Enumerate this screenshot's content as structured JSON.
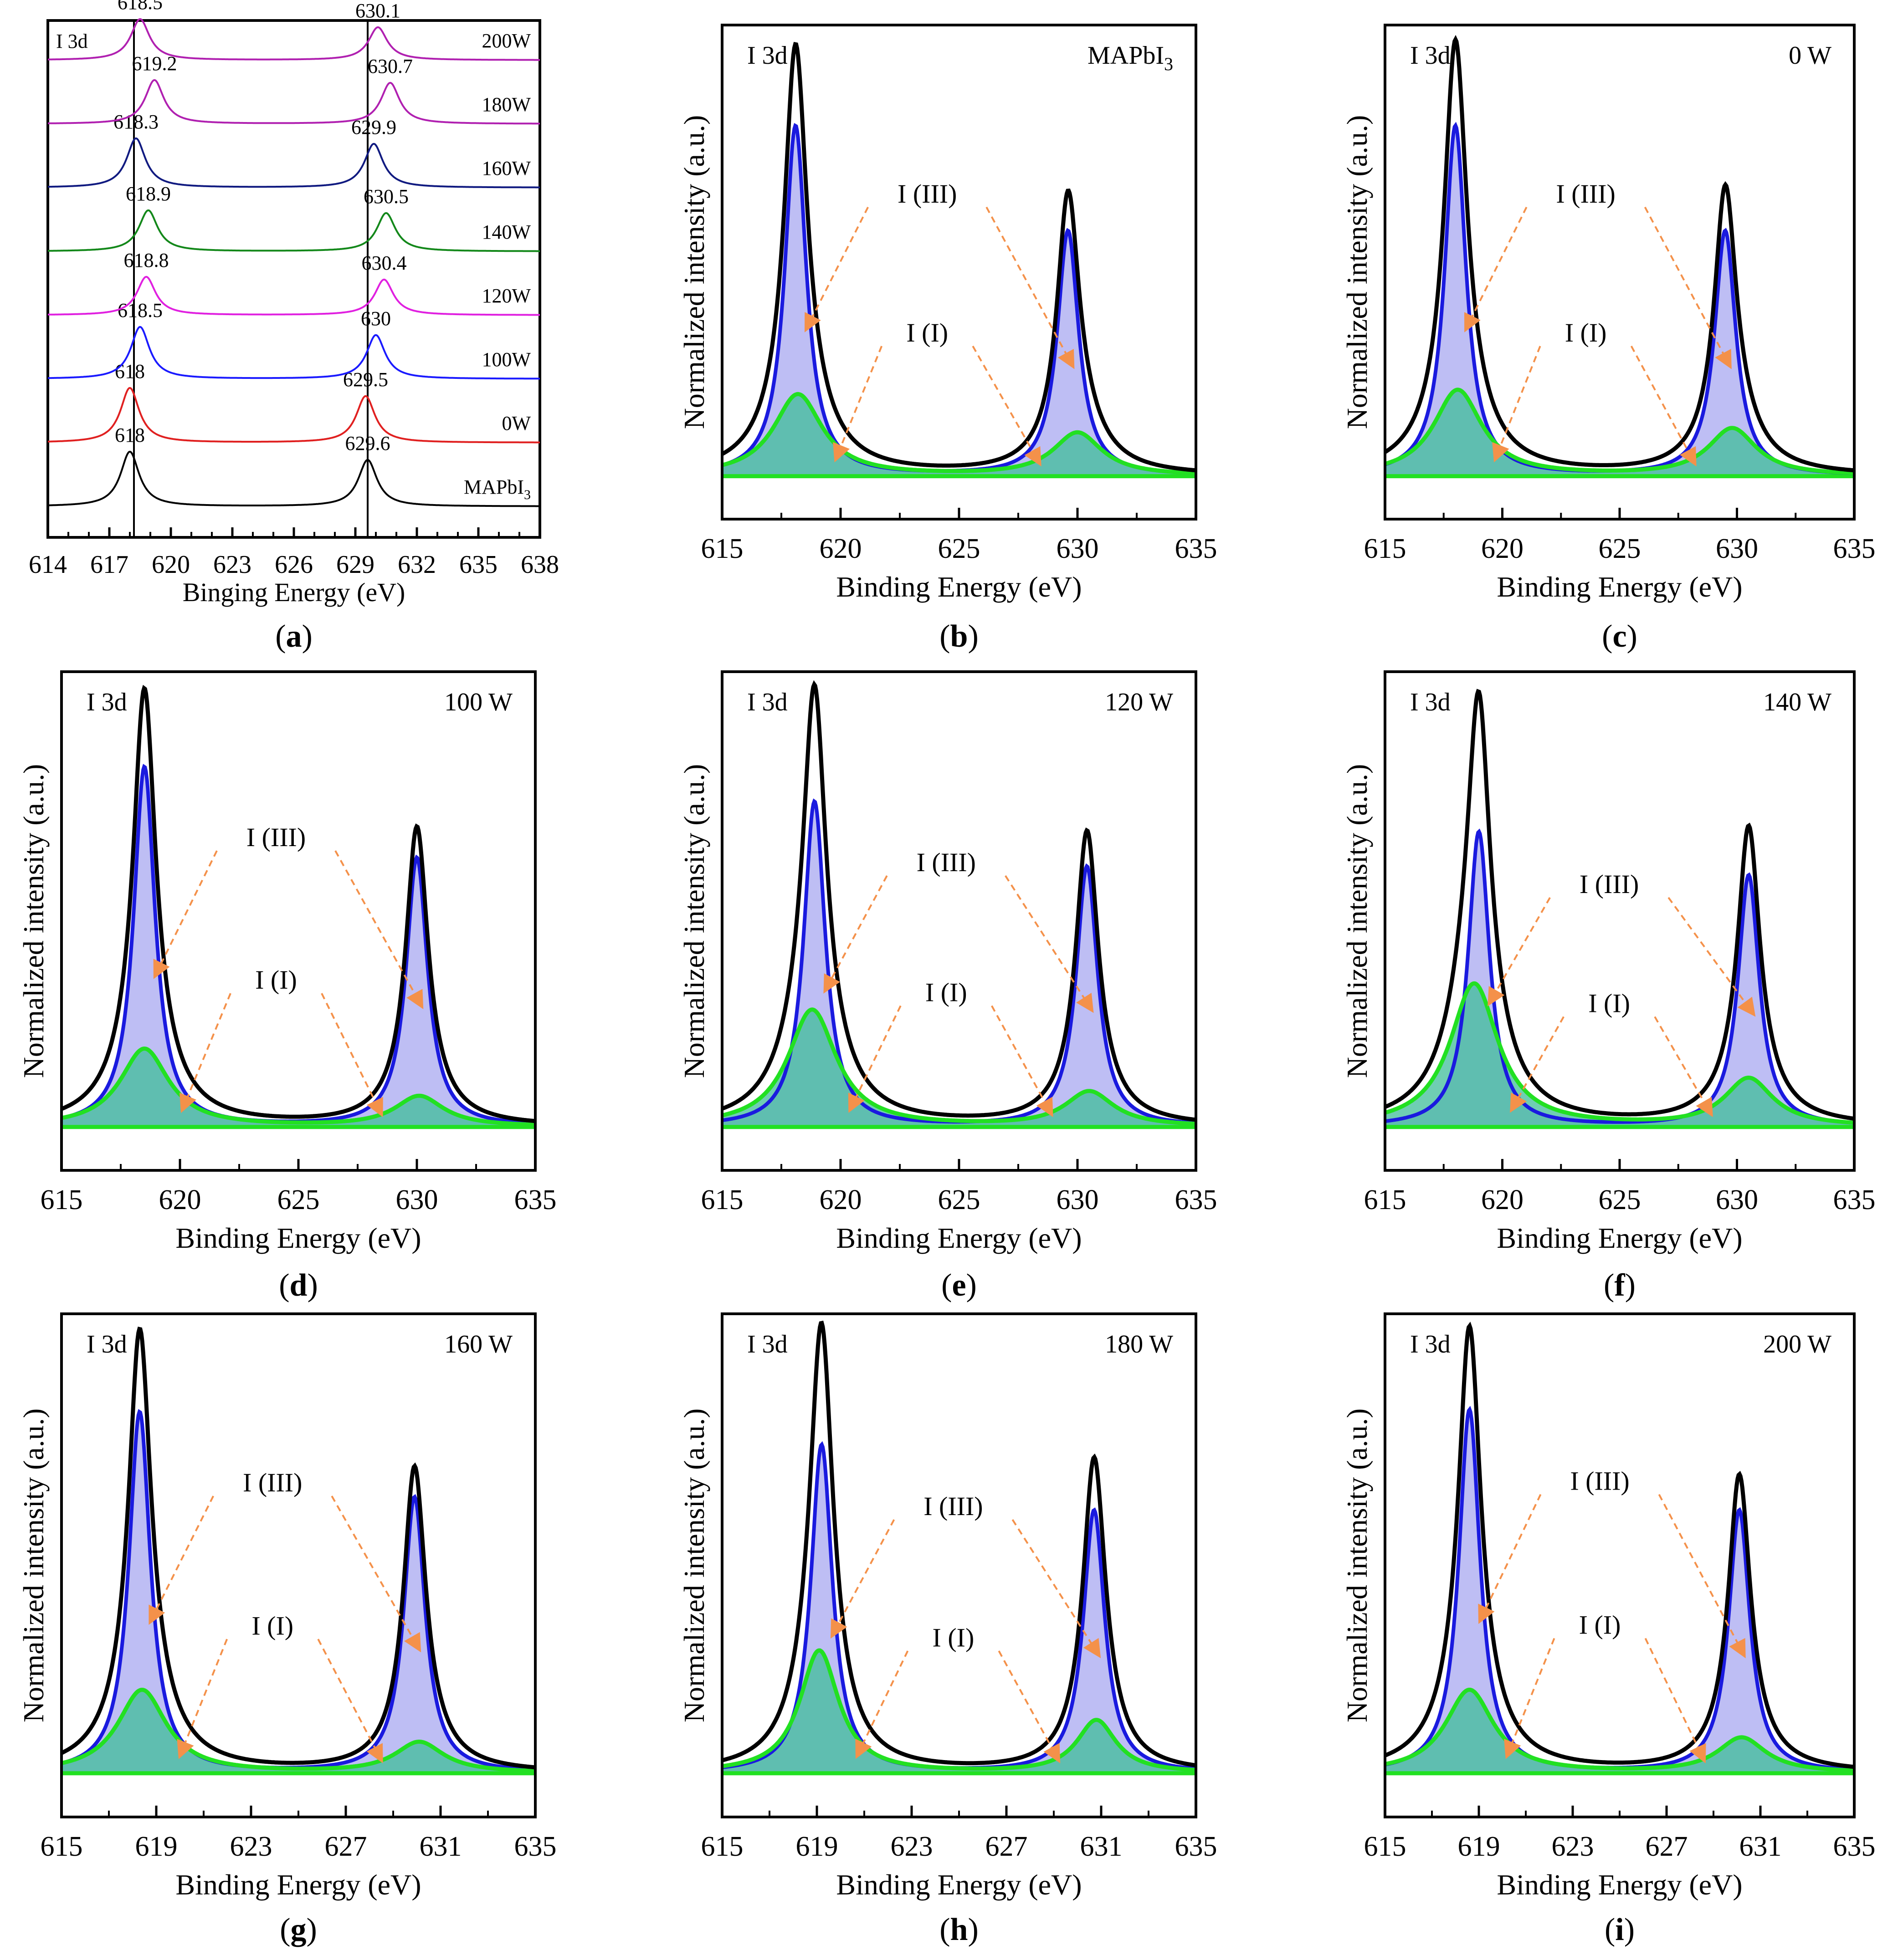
{
  "colors": {
    "black": "#000000",
    "blue": "#1a1adf",
    "green": "#22e022",
    "fill_blue": "#b3b3f2",
    "fill_green": "#3fbe9a",
    "arrow": "#f4914a",
    "series_a": [
      "#000000",
      "#e02020",
      "#1a1aff",
      "#e020e0",
      "#13881a",
      "#101a80",
      "#b020b0",
      "#b020b0"
    ]
  },
  "chart_data": [
    {
      "id": "a",
      "type": "line",
      "caption": "a",
      "title": "I 3d",
      "xlabel": "Binging Energy (eV)",
      "ylabel": "",
      "xlim": [
        614,
        638
      ],
      "xticks": [
        "614",
        "617",
        "620",
        "623",
        "626",
        "629",
        "632",
        "635",
        "638"
      ],
      "vlines": [
        618.2,
        629.6
      ],
      "series": [
        {
          "name": "MAPbI",
          "sub": "3",
          "peaks": [
            "618",
            "629.6"
          ],
          "p1": 618.0,
          "p2": 629.6,
          "h1": 1.0,
          "h2": 0.85
        },
        {
          "name": "0W",
          "peaks": [
            "618",
            "629.5"
          ],
          "p1": 618.0,
          "p2": 629.5,
          "h1": 1.0,
          "h2": 0.85
        },
        {
          "name": "100W",
          "peaks": [
            "618.5",
            "630"
          ],
          "p1": 618.5,
          "p2": 630.0,
          "h1": 0.95,
          "h2": 0.8
        },
        {
          "name": "120W",
          "peaks": [
            "618.8",
            "630.4"
          ],
          "p1": 618.8,
          "p2": 630.4,
          "h1": 0.7,
          "h2": 0.65
        },
        {
          "name": "140W",
          "peaks": [
            "618.9",
            "630.5"
          ],
          "p1": 618.9,
          "p2": 630.5,
          "h1": 0.75,
          "h2": 0.7
        },
        {
          "name": "160W",
          "peaks": [
            "618.3",
            "629.9"
          ],
          "p1": 618.3,
          "p2": 629.9,
          "h1": 0.9,
          "h2": 0.8
        },
        {
          "name": "180W",
          "peaks": [
            "619.2",
            "630.7"
          ],
          "p1": 619.2,
          "p2": 630.7,
          "h1": 0.8,
          "h2": 0.75
        },
        {
          "name": "200W",
          "peaks": [
            "618.5",
            "630.1"
          ],
          "p1": 618.5,
          "p2": 630.1,
          "h1": 0.75,
          "h2": 0.6
        }
      ]
    },
    {
      "id": "b",
      "type": "line",
      "caption": "b",
      "title": "I 3d",
      "label": "MAPbI",
      "label_sub": "3",
      "xlabel": "Binding Energy (eV)",
      "ylabel": "Normalized intensity (a.u.)",
      "xlim": [
        615,
        635
      ],
      "xticks": [
        "615",
        "620",
        "625",
        "630",
        "635"
      ],
      "ylim": [
        -0.1,
        1.05
      ],
      "components": {
        "I (III)": {
          "p1": 618.1,
          "p2": 629.6,
          "a1": 0.815,
          "a2": 0.57,
          "w": 0.55
        },
        "I (I)": {
          "p1": 618.2,
          "p2": 630.0,
          "a1": 0.19,
          "a2": 0.1,
          "w": 1.25
        }
      },
      "annotations": {
        "upper": "I (III)",
        "lower": "I (I)"
      }
    },
    {
      "id": "c",
      "type": "line",
      "caption": "c",
      "title": "I 3d",
      "label": "0 W",
      "xlabel": "Binding Energy (eV)",
      "ylabel": "Normalized intensity (a.u.)",
      "xlim": [
        615,
        635
      ],
      "xticks": [
        "615",
        "620",
        "625",
        "630",
        "635"
      ],
      "ylim": [
        -0.1,
        1.05
      ],
      "components": {
        "I (III)": {
          "p1": 618.0,
          "p2": 629.5,
          "a1": 0.815,
          "a2": 0.57,
          "w": 0.55
        },
        "I (I)": {
          "p1": 618.1,
          "p2": 629.8,
          "a1": 0.2,
          "a2": 0.11,
          "w": 1.25
        }
      },
      "annotations": {
        "upper": "I (III)",
        "lower": "I (I)"
      }
    },
    {
      "id": "d",
      "type": "line",
      "caption": "d",
      "title": "I 3d",
      "label": "100 W",
      "xlabel": "Binding Energy (eV)",
      "ylabel": "Normalized intensity (a.u.)",
      "xlim": [
        615,
        635
      ],
      "xticks": [
        "615",
        "620",
        "625",
        "630",
        "635"
      ],
      "ylim": [
        -0.1,
        1.05
      ],
      "components": {
        "I (III)": {
          "p1": 618.5,
          "p2": 630.0,
          "a1": 0.83,
          "a2": 0.62,
          "w": 0.55
        },
        "I (I)": {
          "p1": 618.5,
          "p2": 630.1,
          "a1": 0.18,
          "a2": 0.07,
          "w": 1.25
        }
      },
      "annotations": {
        "upper": "I (III)",
        "lower": "I (I)"
      }
    },
    {
      "id": "e",
      "type": "line",
      "caption": "e",
      "title": "I 3d",
      "label": "120 W",
      "xlabel": "Binding Energy (eV)",
      "ylabel": "Normalized intensity (a.u.)",
      "xlim": [
        615,
        635
      ],
      "xticks": [
        "615",
        "620",
        "625",
        "630",
        "635"
      ],
      "ylim": [
        -0.1,
        1.05
      ],
      "components": {
        "I (III)": {
          "p1": 618.9,
          "p2": 630.4,
          "a1": 0.75,
          "a2": 0.6,
          "w": 0.55
        },
        "I (I)": {
          "p1": 618.8,
          "p2": 630.5,
          "a1": 0.27,
          "a2": 0.08,
          "w": 1.25
        }
      },
      "annotations": {
        "upper": "I (III)",
        "lower": "I (I)"
      }
    },
    {
      "id": "f",
      "type": "line",
      "caption": "f",
      "title": "I 3d",
      "label": "140 W",
      "xlabel": "Binding Energy (eV)",
      "ylabel": "Normalized intensity (a.u.)",
      "xlim": [
        615,
        635
      ],
      "xticks": [
        "615",
        "620",
        "625",
        "630",
        "635"
      ],
      "ylim": [
        -0.1,
        1.05
      ],
      "components": {
        "I (III)": {
          "p1": 619.0,
          "p2": 630.5,
          "a1": 0.68,
          "a2": 0.58,
          "w": 0.55
        },
        "I (I)": {
          "p1": 618.8,
          "p2": 630.5,
          "a1": 0.33,
          "a2": 0.11,
          "w": 1.25
        }
      },
      "annotations": {
        "upper": "I (III)",
        "lower": "I (I)"
      }
    },
    {
      "id": "g",
      "type": "line",
      "caption": "g",
      "title": "I 3d",
      "label": "160 W",
      "xlabel": "Binding Energy (eV)",
      "ylabel": "Normalized intensity (a.u.)",
      "xlim": [
        615,
        635
      ],
      "xticks": [
        "615",
        "619",
        "623",
        "627",
        "631",
        "635"
      ],
      "ylim": [
        -0.1,
        1.05
      ],
      "components": {
        "I (III)": {
          "p1": 618.3,
          "p2": 629.9,
          "a1": 0.825,
          "a2": 0.63,
          "w": 0.55
        },
        "I (I)": {
          "p1": 618.4,
          "p2": 630.1,
          "a1": 0.19,
          "a2": 0.07,
          "w": 1.25
        }
      },
      "annotations": {
        "upper": "I (III)",
        "lower": "I (I)"
      }
    },
    {
      "id": "h",
      "type": "line",
      "caption": "h",
      "title": "I 3d",
      "label": "180 W",
      "xlabel": "Binding Energy (eV)",
      "ylabel": "Normalized intensity (a.u.)",
      "xlim": [
        615,
        635
      ],
      "xticks": [
        "615",
        "619",
        "623",
        "627",
        "631",
        "635"
      ],
      "ylim": [
        -0.1,
        1.05
      ],
      "components": {
        "I (III)": {
          "p1": 619.2,
          "p2": 630.7,
          "a1": 0.75,
          "a2": 0.6,
          "w": 0.55
        },
        "I (I)": {
          "p1": 619.1,
          "p2": 630.8,
          "a1": 0.28,
          "a2": 0.12,
          "w": 1.0
        }
      },
      "annotations": {
        "upper": "I (III)",
        "lower": "I (I)"
      }
    },
    {
      "id": "i",
      "type": "line",
      "caption": "i",
      "title": "I 3d",
      "label": "200 W",
      "xlabel": "Binding Energy (eV)",
      "ylabel": "Normalized intensity (a.u.)",
      "xlim": [
        615,
        635
      ],
      "xticks": [
        "615",
        "619",
        "623",
        "627",
        "631",
        "635"
      ],
      "ylim": [
        -0.1,
        1.05
      ],
      "components": {
        "I (III)": {
          "p1": 618.6,
          "p2": 630.1,
          "a1": 0.83,
          "a2": 0.6,
          "w": 0.55
        },
        "I (I)": {
          "p1": 618.6,
          "p2": 630.2,
          "a1": 0.19,
          "a2": 0.08,
          "w": 1.25
        }
      },
      "annotations": {
        "upper": "I (III)",
        "lower": "I (I)"
      }
    }
  ]
}
